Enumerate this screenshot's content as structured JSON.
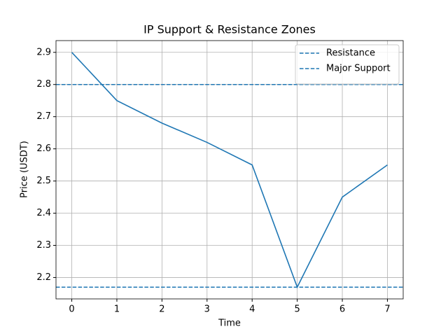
{
  "chart_data": {
    "type": "line",
    "title": "IP Support & Resistance Zones",
    "xlabel": "Time",
    "ylabel": "Price (USDT)",
    "x": [
      0,
      1,
      2,
      3,
      4,
      5,
      6,
      7
    ],
    "series": [
      {
        "name": null,
        "color": "#1f77b4",
        "values": [
          2.9,
          2.75,
          2.68,
          2.62,
          2.55,
          2.17,
          2.45,
          2.55
        ]
      }
    ],
    "hlines": [
      {
        "name": "Resistance",
        "value": 2.8,
        "color": "#1f77b4",
        "dashed": true
      },
      {
        "name": "Major Support",
        "value": 2.17,
        "color": "#1f77b4",
        "dashed": true
      }
    ],
    "xlim": [
      -0.35,
      7.35
    ],
    "xticks": [
      0,
      1,
      2,
      3,
      4,
      5,
      6,
      7
    ],
    "ylim": [
      2.1335,
      2.9365
    ],
    "yticks": [
      {
        "value": 2.2,
        "label": "2.2"
      },
      {
        "value": 2.3,
        "label": "2.3"
      },
      {
        "value": 2.4,
        "label": "2.4"
      },
      {
        "value": 2.5,
        "label": "2.5"
      },
      {
        "value": 2.6,
        "label": "2.6"
      },
      {
        "value": 2.7,
        "label": "2.7"
      },
      {
        "value": 2.8,
        "label": "2.8"
      },
      {
        "value": 2.9,
        "label": "2.9"
      }
    ],
    "grid": true,
    "legend": "upper right"
  }
}
